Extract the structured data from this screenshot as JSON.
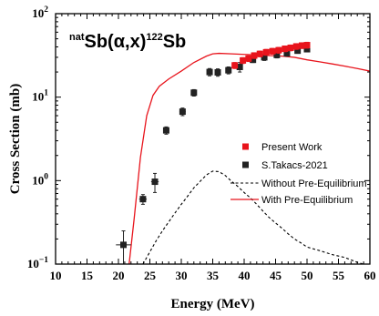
{
  "chart_data": {
    "type": "scatter",
    "title": {
      "pre_sup": "nat",
      "main1": "Sb(α,x)",
      "sup": "122",
      "main2": "Sb"
    },
    "xlabel": "Energy (MeV)",
    "ylabel": "Cross Section (mb)",
    "xlim": [
      10,
      60
    ],
    "ylim": [
      0.1,
      100
    ],
    "yscale": "log",
    "xticks": [
      10,
      15,
      20,
      25,
      30,
      35,
      40,
      45,
      50,
      55,
      60
    ],
    "ytick_labels": [
      {
        "value": 100,
        "base": "10",
        "exp": "2"
      },
      {
        "value": 10,
        "base": "10",
        "exp": "1"
      },
      {
        "value": 1,
        "base": "10",
        "exp": "0"
      },
      {
        "value": 0.1,
        "base": "10",
        "exp": "−1"
      }
    ],
    "legend_position": "right",
    "series": [
      {
        "name": "Present Work",
        "kind": "points",
        "marker": "square",
        "color": "#e8141c",
        "x": [
          38.5,
          39.8,
          40.7,
          41.6,
          42.5,
          43.5,
          44.5,
          45.5,
          46.5,
          47.4,
          48.3,
          49.2,
          50.0
        ],
        "y": [
          24.0,
          27.5,
          29.0,
          31.5,
          33.0,
          34.5,
          35.5,
          36.5,
          38.0,
          39.0,
          40.5,
          41.5,
          42.0
        ],
        "yerr": [
          2.0,
          2.2,
          2.3,
          2.5,
          2.6,
          2.8,
          2.8,
          2.9,
          3.0,
          3.1,
          3.2,
          3.3,
          3.4
        ],
        "xerr": [
          0.3,
          0.3,
          0.3,
          0.3,
          0.3,
          0.3,
          0.3,
          0.3,
          0.3,
          0.3,
          0.3,
          0.3,
          0.3
        ]
      },
      {
        "name": "S.Takacs-2021",
        "kind": "points",
        "marker": "square",
        "color": "#222222",
        "x": [
          20.8,
          23.9,
          25.8,
          27.6,
          30.2,
          32.0,
          34.5,
          35.8,
          37.5,
          39.3,
          41.4,
          43.2,
          45.2,
          46.8,
          48.5,
          50.0
        ],
        "y": [
          0.17,
          0.6,
          0.97,
          4.0,
          6.7,
          11.3,
          20.0,
          19.8,
          21.0,
          23.0,
          28.0,
          30.0,
          32.0,
          33.5,
          36.0,
          37.5
        ],
        "yerr": [
          0.08,
          0.08,
          0.25,
          0.4,
          0.7,
          1.0,
          2.0,
          2.0,
          2.0,
          3.0,
          2.0,
          2.5,
          2.5,
          2.5,
          2.5,
          2.5
        ],
        "xerr": [
          1.2,
          0.6,
          0.6,
          0.5,
          0.5,
          0.4,
          0.4,
          0.4,
          0.4,
          0.4,
          0.4,
          0.4,
          0.4,
          0.4,
          0.4,
          0.4
        ]
      },
      {
        "name": "Without Pre-Equilibrium",
        "kind": "line",
        "style": "dashed",
        "color": "#000000",
        "x": [
          23.9,
          25,
          26,
          27,
          28,
          29,
          30,
          31,
          32,
          33,
          34,
          35,
          36,
          37,
          38,
          39,
          40,
          41,
          42,
          43,
          44,
          45,
          46,
          47,
          48,
          49,
          50,
          52,
          54,
          56,
          58,
          60
        ],
        "y": [
          0.1,
          0.14,
          0.19,
          0.25,
          0.32,
          0.41,
          0.52,
          0.65,
          0.82,
          0.98,
          1.17,
          1.3,
          1.28,
          1.15,
          0.98,
          0.85,
          0.72,
          0.62,
          0.52,
          0.43,
          0.36,
          0.31,
          0.27,
          0.23,
          0.2,
          0.18,
          0.16,
          0.145,
          0.13,
          0.12,
          0.105,
          0.095
        ]
      },
      {
        "name": "With Pre-Equilibrium",
        "kind": "line",
        "style": "solid",
        "color": "#e8141c",
        "x": [
          21.7,
          22.5,
          23.5,
          24.5,
          25.5,
          26.5,
          28,
          30,
          32,
          34,
          35,
          36,
          38,
          40,
          42,
          44,
          46,
          48,
          50,
          52,
          54,
          56,
          58,
          60
        ],
        "y": [
          0.1,
          0.35,
          1.9,
          6.0,
          10.5,
          13.5,
          16.5,
          20.5,
          26.0,
          31.0,
          33.0,
          33.5,
          33.0,
          32.5,
          32.0,
          31.5,
          31.0,
          30.0,
          28.0,
          26.5,
          25.0,
          23.5,
          22.0,
          20.5
        ]
      }
    ]
  }
}
